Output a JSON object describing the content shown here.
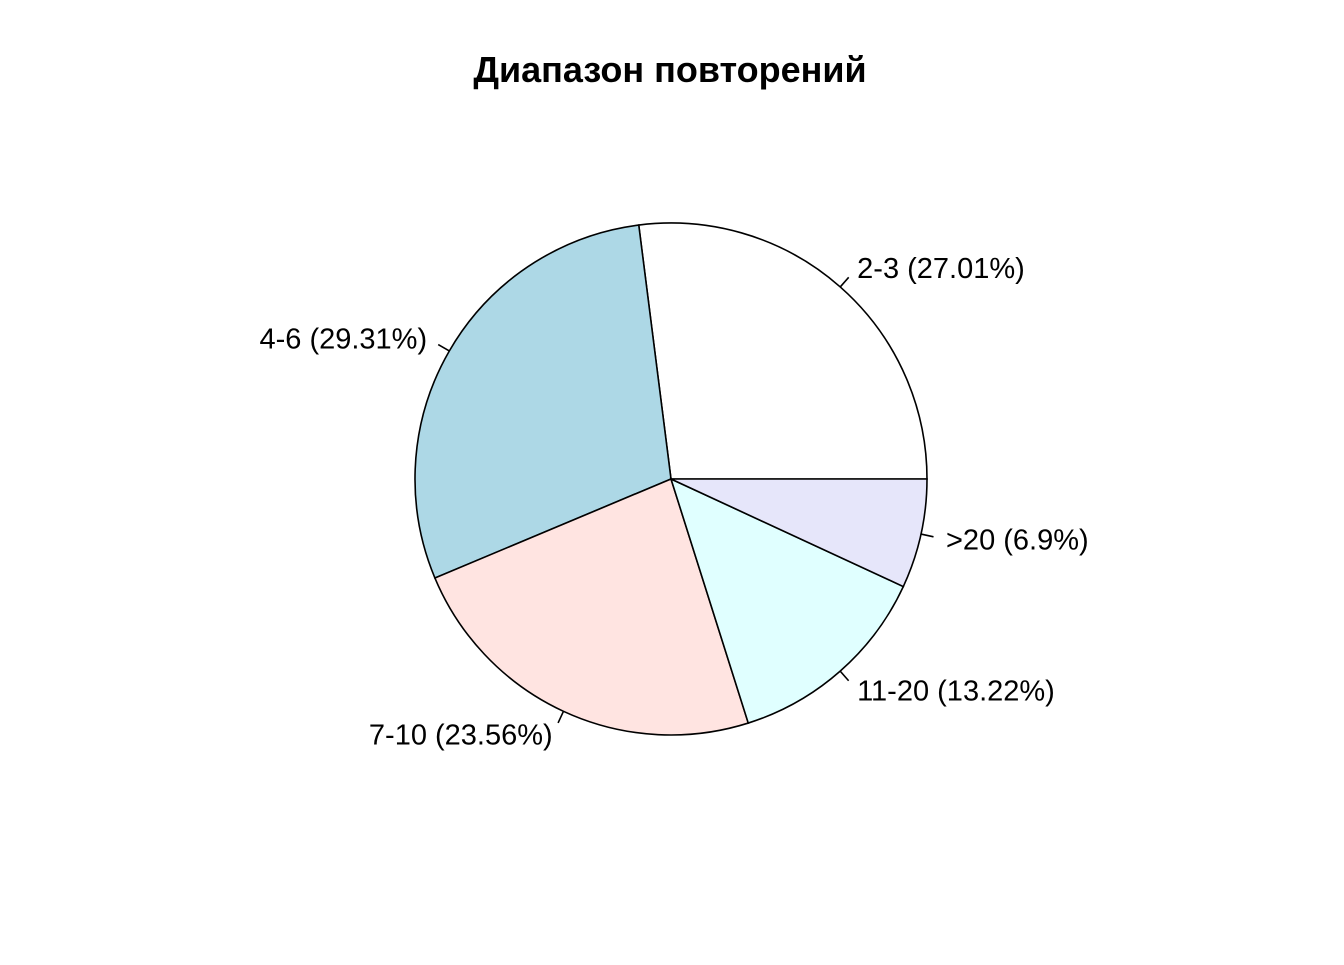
{
  "chart_data": {
    "type": "pie",
    "title": "Диапазон повторений",
    "clockwise": false,
    "start_angle_deg": 0,
    "categories": [
      "2-3",
      "4-6",
      "7-10",
      "11-20",
      ">20"
    ],
    "values": [
      27.01,
      29.31,
      23.56,
      13.22,
      6.9
    ],
    "labels": [
      "2-3 (27.01%)",
      "4-6 (29.31%)",
      "7-10 (23.56%)",
      "11-20 (13.22%)",
      ">20 (6.9%)"
    ],
    "colors": [
      "#FFFFFF",
      "#ADD8E6",
      "#FFE4E1",
      "#E0FFFF",
      "#E6E6FA"
    ],
    "border_color": "#000000",
    "legend": "none"
  }
}
